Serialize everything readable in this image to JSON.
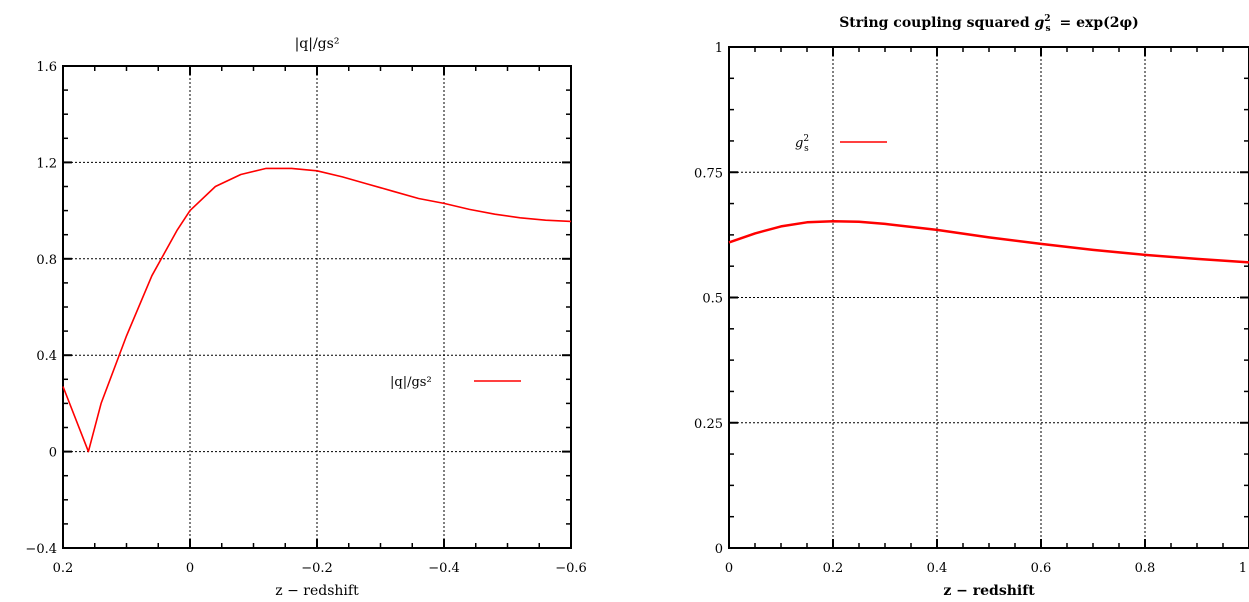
{
  "chart_data": [
    {
      "type": "line",
      "title": "|q|/gs²",
      "xlabel": "z − redshift",
      "ylabel": "",
      "xlim": [
        0.2,
        -0.6
      ],
      "ylim": [
        -0.4,
        1.6
      ],
      "x_ticks": [
        0.2,
        0,
        -0.2,
        -0.4,
        -0.6
      ],
      "x_tick_labels": [
        "0.2",
        "0",
        "−0.2",
        "−0.4",
        "−0.6"
      ],
      "y_ticks": [
        -0.4,
        0,
        0.4,
        0.8,
        1.2,
        1.6
      ],
      "y_tick_labels": [
        "−0.4",
        "0",
        "0.4",
        "0.8",
        "1.2",
        "1.6"
      ],
      "grid": true,
      "legend_position": "right",
      "series": [
        {
          "name": "|q|/gs²",
          "color": "#ff0000",
          "x": [
            0.2,
            0.16,
            0.14,
            0.1,
            0.06,
            0.02,
            0.0,
            -0.04,
            -0.08,
            -0.12,
            -0.16,
            -0.2,
            -0.24,
            -0.28,
            -0.32,
            -0.36,
            -0.4,
            -0.44,
            -0.48,
            -0.52,
            -0.56,
            -0.6
          ],
          "y": [
            0.27,
            0.0,
            0.2,
            0.48,
            0.73,
            0.92,
            1.0,
            1.1,
            1.15,
            1.175,
            1.175,
            1.165,
            1.14,
            1.11,
            1.08,
            1.05,
            1.03,
            1.005,
            0.985,
            0.97,
            0.96,
            0.955
          ]
        }
      ]
    },
    {
      "type": "line",
      "title": "String coupling squared",
      "title_formula": "g",
      "title_formula_sub": "s",
      "title_formula_sup": "2",
      "title_formula_rest": "= exp(2φ)",
      "xlabel": "z − redshift",
      "ylabel": "",
      "xlim": [
        0,
        1
      ],
      "ylim": [
        0,
        1
      ],
      "x_ticks": [
        0,
        0.2,
        0.4,
        0.6,
        0.8,
        1
      ],
      "x_tick_labels": [
        "0",
        "0.2",
        "0.4",
        "0.6",
        "0.8",
        "1"
      ],
      "y_ticks": [
        0,
        0.25,
        0.5,
        0.75,
        1
      ],
      "y_tick_labels": [
        "0",
        "0.25",
        "0.5",
        "0.75",
        "1"
      ],
      "grid": true,
      "legend_position": "top-left",
      "series": [
        {
          "name": "g",
          "name_sub": "s",
          "name_sup": "2",
          "color": "#ff0000",
          "x": [
            0,
            0.05,
            0.1,
            0.15,
            0.2,
            0.25,
            0.3,
            0.4,
            0.5,
            0.6,
            0.7,
            0.8,
            0.9,
            1.0
          ],
          "y": [
            0.61,
            0.628,
            0.642,
            0.65,
            0.652,
            0.651,
            0.647,
            0.635,
            0.62,
            0.607,
            0.595,
            0.585,
            0.577,
            0.57
          ]
        }
      ]
    }
  ]
}
